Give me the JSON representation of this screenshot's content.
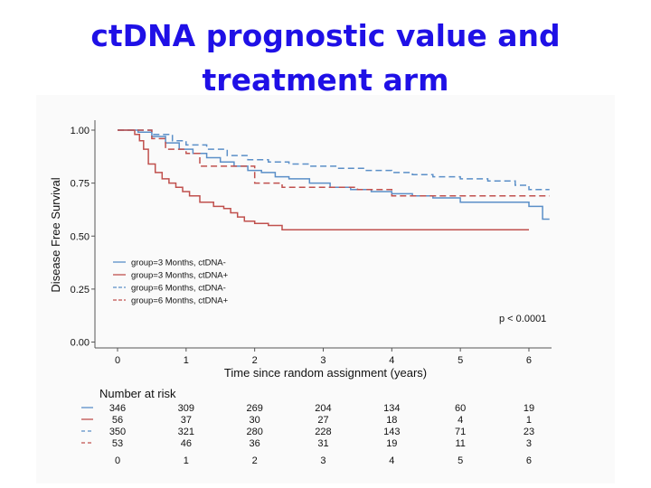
{
  "slide_title": {
    "line1": "ctDNA prognostic value and",
    "line2": "treatment arm"
  },
  "chart_data": {
    "type": "line",
    "title": "ctDNA prognostic value and treatment arm",
    "xlabel": "Time since random assignment (years)",
    "ylabel": "Disease Free Survival",
    "xlim": [
      0,
      6.3
    ],
    "ylim": [
      0,
      1.05
    ],
    "x_ticks": [
      "0",
      "1",
      "2",
      "3",
      "4",
      "5",
      "6"
    ],
    "y_ticks": [
      "0.00",
      "0.25",
      "0.50",
      "0.75",
      "1.00"
    ],
    "annotation": "p < 0.0001",
    "legend_position": "bottom-left",
    "series": [
      {
        "name": "group=3 Months, ctDNA-",
        "color": "#5b8fc8",
        "dash": "solid",
        "x": [
          0,
          0.15,
          0.3,
          0.5,
          0.7,
          0.9,
          1.1,
          1.3,
          1.5,
          1.7,
          1.9,
          2.1,
          2.3,
          2.5,
          2.8,
          3.1,
          3.4,
          3.7,
          4.0,
          4.3,
          4.6,
          4.9,
          5.0,
          5.4,
          5.8,
          6.0,
          6.2,
          6.3
        ],
        "y": [
          1.0,
          1.0,
          0.99,
          0.97,
          0.94,
          0.91,
          0.89,
          0.87,
          0.85,
          0.83,
          0.81,
          0.8,
          0.78,
          0.77,
          0.75,
          0.73,
          0.72,
          0.71,
          0.7,
          0.69,
          0.68,
          0.68,
          0.66,
          0.66,
          0.66,
          0.64,
          0.58,
          0.58
        ]
      },
      {
        "name": "group=3 Months, ctDNA+",
        "color": "#c0504d",
        "dash": "solid",
        "x": [
          0,
          0.15,
          0.25,
          0.32,
          0.38,
          0.45,
          0.55,
          0.65,
          0.75,
          0.85,
          0.95,
          1.05,
          1.2,
          1.4,
          1.55,
          1.65,
          1.75,
          1.85,
          2.0,
          2.1,
          2.2,
          2.4,
          3.0,
          4.0,
          5.0,
          6.0
        ],
        "y": [
          1.0,
          1.0,
          0.98,
          0.95,
          0.91,
          0.84,
          0.8,
          0.77,
          0.75,
          0.73,
          0.71,
          0.69,
          0.66,
          0.64,
          0.63,
          0.61,
          0.59,
          0.57,
          0.56,
          0.56,
          0.55,
          0.53,
          0.53,
          0.53,
          0.53,
          0.53
        ]
      },
      {
        "name": "group=6 Months, ctDNA-",
        "color": "#5b8fc8",
        "dash": "dashed",
        "x": [
          0,
          0.2,
          0.5,
          0.8,
          1.0,
          1.3,
          1.6,
          1.9,
          2.2,
          2.5,
          2.8,
          3.2,
          3.6,
          4.0,
          4.3,
          4.6,
          5.0,
          5.4,
          5.8,
          6.0,
          6.3
        ],
        "y": [
          1.0,
          1.0,
          0.98,
          0.95,
          0.93,
          0.91,
          0.88,
          0.86,
          0.85,
          0.84,
          0.83,
          0.82,
          0.81,
          0.8,
          0.79,
          0.78,
          0.77,
          0.76,
          0.74,
          0.72,
          0.72
        ]
      },
      {
        "name": "group=6 Months, ctDNA+",
        "color": "#c0504d",
        "dash": "dashed",
        "x": [
          0,
          0.3,
          0.5,
          0.7,
          1.0,
          1.2,
          1.6,
          2.0,
          2.4,
          3.0,
          3.5,
          4.0,
          4.5,
          5.0,
          5.5,
          6.0,
          6.3
        ],
        "y": [
          1.0,
          1.0,
          0.96,
          0.91,
          0.89,
          0.83,
          0.83,
          0.75,
          0.73,
          0.73,
          0.72,
          0.69,
          0.69,
          0.69,
          0.69,
          0.69,
          0.69
        ]
      }
    ],
    "risk_table": {
      "title": "Number at risk",
      "times": [
        "0",
        "1",
        "2",
        "3",
        "4",
        "5",
        "6"
      ],
      "rows": [
        {
          "color": "#5b8fc8",
          "dash": "solid",
          "values": [
            "346",
            "309",
            "269",
            "204",
            "134",
            "60",
            "19"
          ]
        },
        {
          "color": "#c0504d",
          "dash": "solid",
          "values": [
            "56",
            "37",
            "30",
            "27",
            "18",
            "4",
            "1"
          ]
        },
        {
          "color": "#5b8fc8",
          "dash": "dashed",
          "values": [
            "350",
            "321",
            "280",
            "228",
            "143",
            "71",
            "23"
          ]
        },
        {
          "color": "#c0504d",
          "dash": "dashed",
          "values": [
            "53",
            "46",
            "36",
            "31",
            "19",
            "11",
            "3"
          ]
        }
      ]
    }
  }
}
